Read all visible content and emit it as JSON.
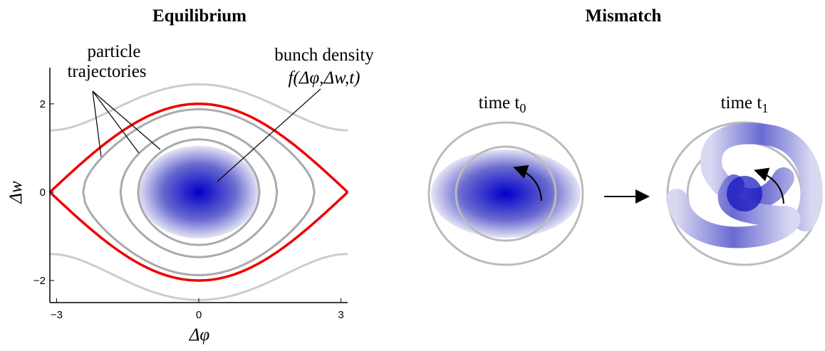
{
  "left_panel": {
    "title": "Equilibrium",
    "xlabel": "Δφ",
    "ylabel": "Δw",
    "xlim": [
      -3.1416,
      3.1416
    ],
    "ylim": [
      -2.5,
      2.82
    ],
    "xticks": [
      {
        "value": -3,
        "label": "−3"
      },
      0,
      3
    ],
    "yticks": [
      {
        "value": -2,
        "label": "−2"
      },
      0,
      2
    ],
    "annotations": {
      "trajectories": [
        "particle",
        "trajectories"
      ],
      "density": [
        "bunch density",
        "f(Δφ,Δw,t)"
      ]
    }
  },
  "right_panel": {
    "title": "Mismatch",
    "panels": [
      {
        "label": "time t",
        "subscript": "0"
      },
      {
        "label": "time t",
        "subscript": "1"
      }
    ]
  }
}
